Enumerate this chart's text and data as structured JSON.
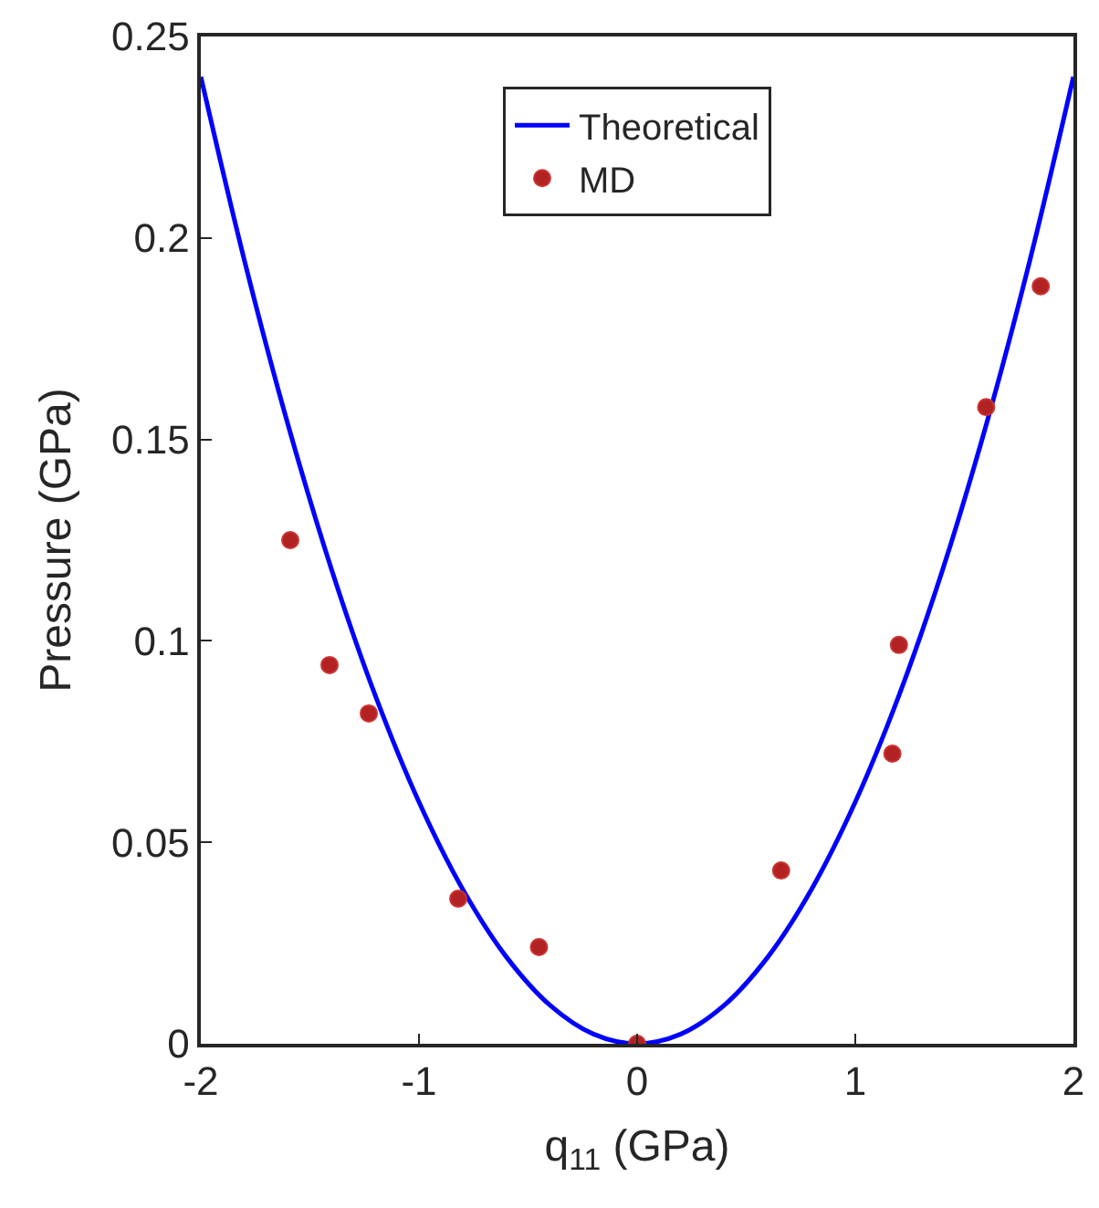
{
  "chart_data": {
    "type": "scatter",
    "xlabel": "q$_{11}$ (GPa)",
    "ylabel": "Pressure (GPa)",
    "xlim": [
      -2,
      2
    ],
    "xticks": [
      -2,
      -1,
      0,
      1,
      2
    ],
    "ylim": [
      0,
      0.25
    ],
    "yticks": [
      0,
      0.05,
      0.1,
      0.15,
      0.2,
      0.25
    ],
    "legend": "top",
    "series": [
      {
        "name": "Theoretical",
        "type": "line",
        "color": "#0000ff",
        "marker": "none",
        "line_style": "solid",
        "x": [
          -2,
          -1.8,
          -1.6,
          -1.4,
          -1.2,
          -1,
          -0.8,
          -0.6,
          -0.4,
          -0.2,
          0,
          0.2,
          0.4,
          0.6,
          0.8,
          1,
          1.2,
          1.4,
          1.6,
          1.8,
          2
        ],
        "values": [
          0.24,
          0.1944,
          0.1536,
          0.1176,
          0.0864,
          0.06,
          0.0384,
          0.0216,
          0.0096,
          0.0024,
          0,
          0.0024,
          0.0096,
          0.0216,
          0.0384,
          0.06,
          0.0864,
          0.1176,
          0.1536,
          0.1944,
          0.24
        ]
      },
      {
        "name": "MD",
        "color": "#b22222",
        "marker": "circle",
        "x": [
          -1.59,
          -1.41,
          -1.23,
          -0.82,
          -0.45,
          0,
          0.66,
          1.17,
          1.2,
          1.6,
          1.85
        ],
        "values": [
          0.125,
          0.094,
          0.082,
          0.036,
          0.024,
          0,
          0.043,
          0.072,
          0.099,
          0.158,
          0.188
        ]
      }
    ]
  }
}
